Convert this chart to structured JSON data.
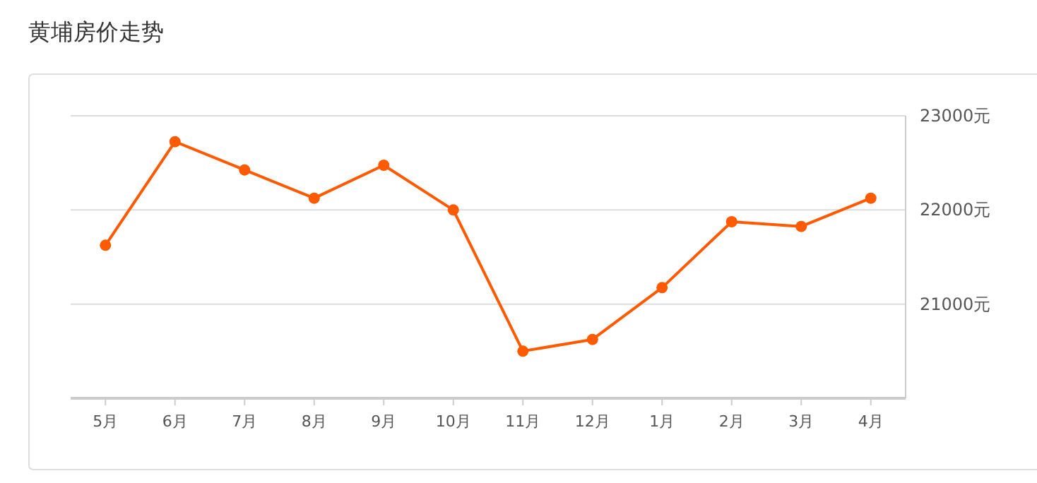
{
  "chart_data": {
    "type": "line",
    "title": "黄埔房价走势",
    "categories": [
      "5月",
      "6月",
      "7月",
      "8月",
      "9月",
      "10月",
      "11月",
      "12月",
      "1月",
      "2月",
      "3月",
      "4月"
    ],
    "series": [
      {
        "color": "#ff5a00",
        "values": [
          21625,
          22725,
          22425,
          22125,
          22475,
          22000,
          20500,
          20625,
          21175,
          21875,
          21825,
          22125
        ]
      }
    ],
    "ylim": [
      20000,
      23000
    ],
    "yticks": [
      {
        "value": 21000,
        "label": "21000元"
      },
      {
        "value": 22000,
        "label": "22000元"
      },
      {
        "value": 23000,
        "label": "23000元"
      }
    ],
    "grid": "y",
    "marker": "circle"
  }
}
